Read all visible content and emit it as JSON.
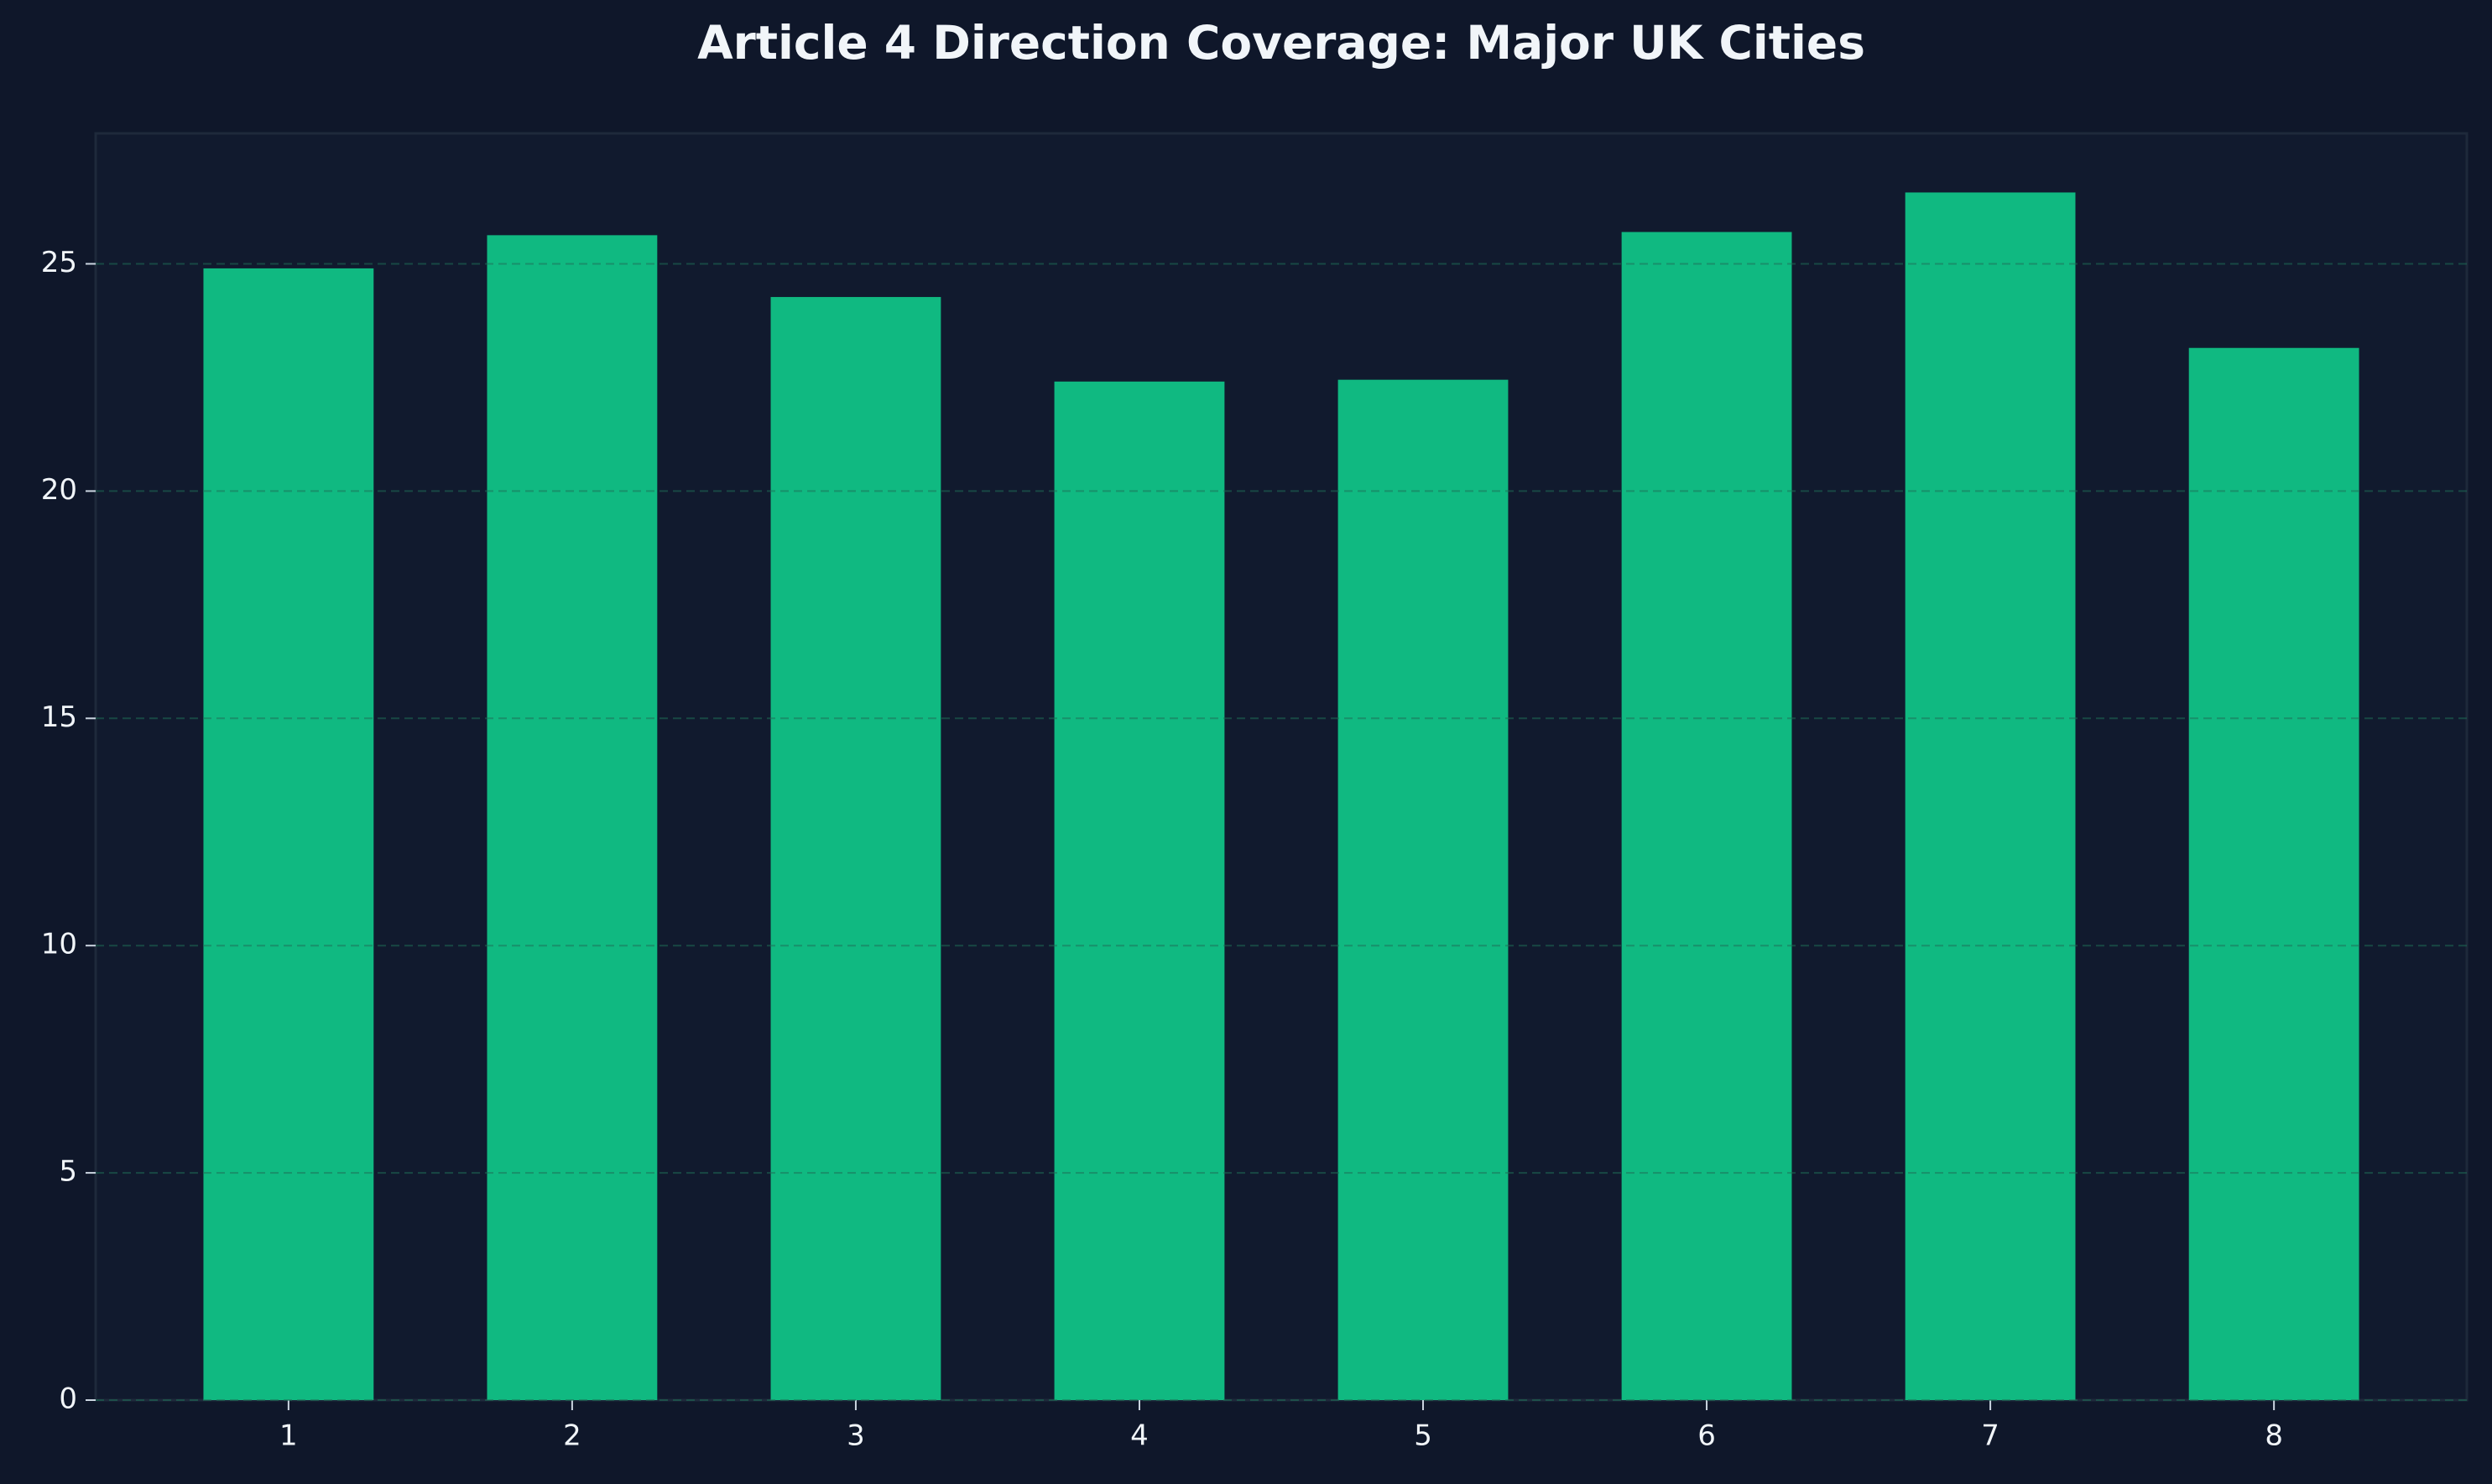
{
  "chart_data": {
    "type": "bar",
    "title": "Article 4 Direction Coverage: Major UK Cities",
    "categories": [
      "1",
      "2",
      "3",
      "4",
      "5",
      "6",
      "7",
      "8"
    ],
    "values": [
      24.9,
      25.63,
      24.27,
      22.41,
      22.45,
      25.7,
      26.57,
      23.15
    ],
    "color": "#10b981",
    "ylim": [
      0,
      27.87
    ],
    "yticks": [
      0,
      5,
      10,
      15,
      20,
      25
    ],
    "grid": true
  }
}
